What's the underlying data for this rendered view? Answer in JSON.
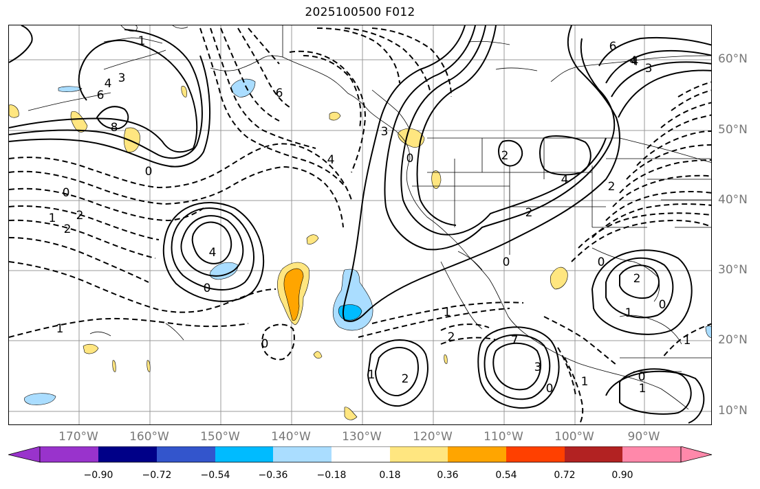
{
  "title": "2025100500 F012",
  "lat_labels": [
    "60°N",
    "50°N",
    "40°N",
    "30°N",
    "20°N",
    "10°N"
  ],
  "lon_labels": [
    "170°W",
    "160°W",
    "150°W",
    "140°W",
    "130°W",
    "120°W",
    "110°W",
    "100°W",
    "90°W"
  ],
  "contour_labels": [
    "1",
    "3",
    "4",
    "6",
    "8",
    "0",
    "0",
    "1",
    "2",
    "2",
    "4",
    "6",
    "4",
    "3",
    "0",
    "2",
    "4",
    "2",
    "4",
    "6",
    "4",
    "3",
    "2",
    "1",
    "0",
    "2",
    "0",
    "1",
    "0",
    "0",
    "1",
    "2",
    "7",
    "3",
    "0",
    "0",
    "1",
    "2",
    "1",
    "1",
    "0",
    "1"
  ],
  "colorbar": {
    "ticks": [
      "−0.90",
      "−0.72",
      "−0.54",
      "−0.36",
      "−0.18",
      "0.18",
      "0.36",
      "0.54",
      "0.72",
      "0.90"
    ],
    "colors": [
      "#9933cc",
      "#000088",
      "#3355cc",
      "#00bbff",
      "#aaddff",
      "#ffffff",
      "#ffe680",
      "#ffa500",
      "#ff4000",
      "#b22222",
      "#ff88aa"
    ]
  },
  "shading_colors": {
    "light_blue": "#aaddff",
    "blue": "#00bbff",
    "yellow": "#ffe680",
    "orange": "#ffa500"
  }
}
